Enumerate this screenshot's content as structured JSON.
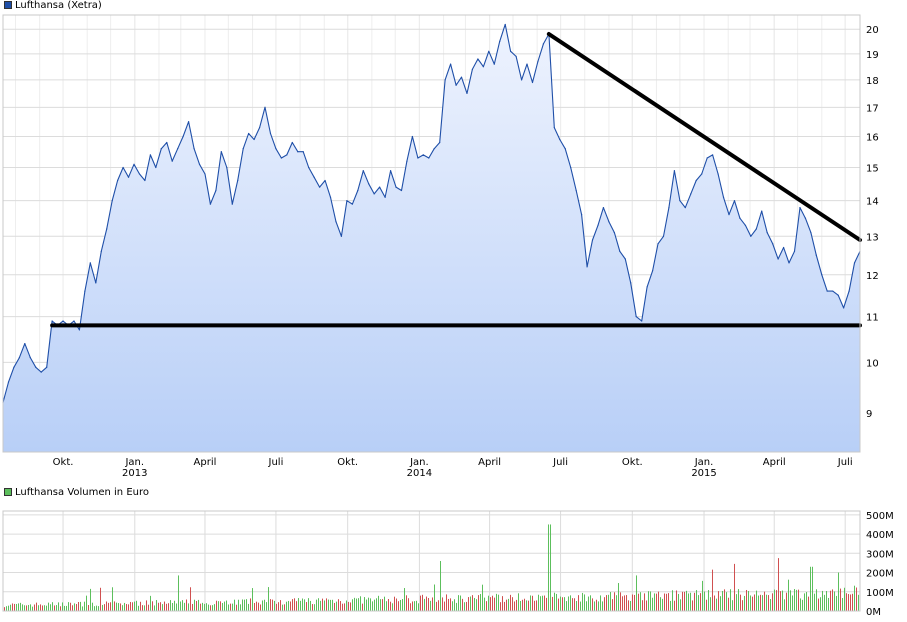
{
  "legends": {
    "price": {
      "label": "Lufthansa (Xetra)",
      "color": "#1f4fa8"
    },
    "volume": {
      "label": "Lufthansa Volumen in Euro",
      "color": "#5cbf5c"
    }
  },
  "chart_data": [
    {
      "type": "area",
      "series": [
        {
          "name": "Lufthansa (Xetra)"
        }
      ],
      "x_ticks": [
        {
          "date": "2012-10-01",
          "label": "Okt.",
          "year": ""
        },
        {
          "date": "2013-01-01",
          "label": "Jan.",
          "year": "2013"
        },
        {
          "date": "2013-04-01",
          "label": "April",
          "year": ""
        },
        {
          "date": "2013-07-01",
          "label": "Juli",
          "year": ""
        },
        {
          "date": "2013-10-01",
          "label": "Okt.",
          "year": ""
        },
        {
          "date": "2014-01-01",
          "label": "Jan.",
          "year": "2014"
        },
        {
          "date": "2014-04-01",
          "label": "April",
          "year": ""
        },
        {
          "date": "2014-07-01",
          "label": "Juli",
          "year": ""
        },
        {
          "date": "2014-10-01",
          "label": "Okt.",
          "year": ""
        },
        {
          "date": "2015-01-01",
          "label": "Jan.",
          "year": "2015"
        },
        {
          "date": "2015-04-01",
          "label": "April",
          "year": ""
        },
        {
          "date": "2015-07-01",
          "label": "Juli",
          "year": ""
        }
      ],
      "y_ticks": [
        9,
        10,
        11,
        12,
        13,
        14,
        15,
        16,
        17,
        18,
        19,
        20
      ],
      "ylim": [
        8.3,
        20.6
      ],
      "y_scale": "log",
      "xlim": [
        "2012-07-16",
        "2015-07-20"
      ],
      "points": [
        [
          "2012-07-16",
          9.2
        ],
        [
          "2012-07-23",
          9.6
        ],
        [
          "2012-07-30",
          9.9
        ],
        [
          "2012-08-06",
          10.1
        ],
        [
          "2012-08-13",
          10.4
        ],
        [
          "2012-08-20",
          10.1
        ],
        [
          "2012-08-27",
          9.9
        ],
        [
          "2012-09-03",
          9.8
        ],
        [
          "2012-09-10",
          9.9
        ],
        [
          "2012-09-17",
          10.9
        ],
        [
          "2012-09-24",
          10.8
        ],
        [
          "2012-10-01",
          10.9
        ],
        [
          "2012-10-08",
          10.8
        ],
        [
          "2012-10-15",
          10.9
        ],
        [
          "2012-10-22",
          10.7
        ],
        [
          "2012-10-29",
          11.6
        ],
        [
          "2012-11-05",
          12.3
        ],
        [
          "2012-11-12",
          11.8
        ],
        [
          "2012-11-19",
          12.6
        ],
        [
          "2012-11-26",
          13.2
        ],
        [
          "2012-12-03",
          14.0
        ],
        [
          "2012-12-10",
          14.6
        ],
        [
          "2012-12-17",
          15.0
        ],
        [
          "2012-12-24",
          14.7
        ],
        [
          "2012-12-31",
          15.1
        ],
        [
          "2013-01-07",
          14.8
        ],
        [
          "2013-01-14",
          14.6
        ],
        [
          "2013-01-21",
          15.4
        ],
        [
          "2013-01-28",
          15.0
        ],
        [
          "2013-02-04",
          15.6
        ],
        [
          "2013-02-11",
          15.8
        ],
        [
          "2013-02-18",
          15.2
        ],
        [
          "2013-02-25",
          15.6
        ],
        [
          "2013-03-04",
          16.0
        ],
        [
          "2013-03-11",
          16.5
        ],
        [
          "2013-03-18",
          15.6
        ],
        [
          "2013-03-25",
          15.1
        ],
        [
          "2013-04-01",
          14.8
        ],
        [
          "2013-04-08",
          13.9
        ],
        [
          "2013-04-15",
          14.3
        ],
        [
          "2013-04-22",
          15.5
        ],
        [
          "2013-04-29",
          15.0
        ],
        [
          "2013-05-06",
          13.9
        ],
        [
          "2013-05-13",
          14.6
        ],
        [
          "2013-05-20",
          15.6
        ],
        [
          "2013-05-27",
          16.1
        ],
        [
          "2013-06-03",
          15.9
        ],
        [
          "2013-06-10",
          16.3
        ],
        [
          "2013-06-17",
          17.0
        ],
        [
          "2013-06-24",
          16.1
        ],
        [
          "2013-07-01",
          15.6
        ],
        [
          "2013-07-08",
          15.3
        ],
        [
          "2013-07-15",
          15.4
        ],
        [
          "2013-07-22",
          15.8
        ],
        [
          "2013-07-29",
          15.5
        ],
        [
          "2013-08-05",
          15.5
        ],
        [
          "2013-08-12",
          15.0
        ],
        [
          "2013-08-19",
          14.7
        ],
        [
          "2013-08-26",
          14.4
        ],
        [
          "2013-09-02",
          14.6
        ],
        [
          "2013-09-09",
          14.1
        ],
        [
          "2013-09-16",
          13.4
        ],
        [
          "2013-09-23",
          13.0
        ],
        [
          "2013-09-30",
          14.0
        ],
        [
          "2013-10-07",
          13.9
        ],
        [
          "2013-10-14",
          14.3
        ],
        [
          "2013-10-21",
          14.9
        ],
        [
          "2013-10-28",
          14.5
        ],
        [
          "2013-11-04",
          14.2
        ],
        [
          "2013-11-11",
          14.4
        ],
        [
          "2013-11-18",
          14.1
        ],
        [
          "2013-11-25",
          14.9
        ],
        [
          "2013-12-02",
          14.4
        ],
        [
          "2013-12-09",
          14.3
        ],
        [
          "2013-12-16",
          15.2
        ],
        [
          "2013-12-23",
          16.0
        ],
        [
          "2013-12-30",
          15.3
        ],
        [
          "2014-01-06",
          15.4
        ],
        [
          "2014-01-13",
          15.3
        ],
        [
          "2014-01-20",
          15.6
        ],
        [
          "2014-01-27",
          15.8
        ],
        [
          "2014-02-03",
          18.0
        ],
        [
          "2014-02-10",
          18.6
        ],
        [
          "2014-02-17",
          17.8
        ],
        [
          "2014-02-24",
          18.1
        ],
        [
          "2014-03-03",
          17.5
        ],
        [
          "2014-03-10",
          18.4
        ],
        [
          "2014-03-17",
          18.8
        ],
        [
          "2014-03-24",
          18.5
        ],
        [
          "2014-03-31",
          19.1
        ],
        [
          "2014-04-07",
          18.6
        ],
        [
          "2014-04-14",
          19.5
        ],
        [
          "2014-04-21",
          20.2
        ],
        [
          "2014-04-28",
          19.1
        ],
        [
          "2014-05-05",
          18.9
        ],
        [
          "2014-05-12",
          18.0
        ],
        [
          "2014-05-19",
          18.6
        ],
        [
          "2014-05-26",
          17.9
        ],
        [
          "2014-06-02",
          18.7
        ],
        [
          "2014-06-09",
          19.4
        ],
        [
          "2014-06-16",
          19.8
        ],
        [
          "2014-06-23",
          16.3
        ],
        [
          "2014-06-30",
          15.9
        ],
        [
          "2014-07-07",
          15.6
        ],
        [
          "2014-07-14",
          15.0
        ],
        [
          "2014-07-21",
          14.3
        ],
        [
          "2014-07-28",
          13.6
        ],
        [
          "2014-08-04",
          12.2
        ],
        [
          "2014-08-11",
          12.9
        ],
        [
          "2014-08-18",
          13.3
        ],
        [
          "2014-08-25",
          13.8
        ],
        [
          "2014-09-01",
          13.4
        ],
        [
          "2014-09-08",
          13.1
        ],
        [
          "2014-09-15",
          12.6
        ],
        [
          "2014-09-22",
          12.4
        ],
        [
          "2014-09-29",
          11.8
        ],
        [
          "2014-10-06",
          11.0
        ],
        [
          "2014-10-13",
          10.9
        ],
        [
          "2014-10-20",
          11.7
        ],
        [
          "2014-10-27",
          12.1
        ],
        [
          "2014-11-03",
          12.8
        ],
        [
          "2014-11-10",
          13.0
        ],
        [
          "2014-11-17",
          13.8
        ],
        [
          "2014-11-24",
          14.9
        ],
        [
          "2014-12-01",
          14.0
        ],
        [
          "2014-12-08",
          13.8
        ],
        [
          "2014-12-15",
          14.2
        ],
        [
          "2014-12-22",
          14.6
        ],
        [
          "2014-12-29",
          14.8
        ],
        [
          "2015-01-05",
          15.3
        ],
        [
          "2015-01-12",
          15.4
        ],
        [
          "2015-01-19",
          14.8
        ],
        [
          "2015-01-26",
          14.1
        ],
        [
          "2015-02-02",
          13.6
        ],
        [
          "2015-02-09",
          14.0
        ],
        [
          "2015-02-16",
          13.5
        ],
        [
          "2015-02-23",
          13.3
        ],
        [
          "2015-03-02",
          13.0
        ],
        [
          "2015-03-09",
          13.2
        ],
        [
          "2015-03-16",
          13.7
        ],
        [
          "2015-03-23",
          13.1
        ],
        [
          "2015-03-30",
          12.8
        ],
        [
          "2015-04-06",
          12.4
        ],
        [
          "2015-04-13",
          12.7
        ],
        [
          "2015-04-20",
          12.3
        ],
        [
          "2015-04-27",
          12.6
        ],
        [
          "2015-05-04",
          13.8
        ],
        [
          "2015-05-11",
          13.5
        ],
        [
          "2015-05-18",
          13.1
        ],
        [
          "2015-05-25",
          12.5
        ],
        [
          "2015-06-01",
          12.0
        ],
        [
          "2015-06-08",
          11.6
        ],
        [
          "2015-06-15",
          11.6
        ],
        [
          "2015-06-22",
          11.5
        ],
        [
          "2015-06-29",
          11.2
        ],
        [
          "2015-07-06",
          11.6
        ],
        [
          "2015-07-13",
          12.3
        ],
        [
          "2015-07-20",
          12.6
        ]
      ],
      "annotations": [
        {
          "type": "trendline",
          "from": [
            "2014-06-16",
            19.8
          ],
          "to": [
            "2015-07-20",
            12.9
          ],
          "color": "#000000"
        },
        {
          "type": "support",
          "from": [
            "2012-09-17",
            10.8
          ],
          "to": [
            "2015-07-20",
            10.8
          ],
          "color": "#000000"
        }
      ],
      "fill_top": "#eef3fe",
      "fill_bottom": "#b8cff7",
      "line_color": "#1f4fa8",
      "grid": true
    },
    {
      "type": "bar",
      "series": [
        {
          "name": "Lufthansa Volumen in Euro"
        }
      ],
      "y_ticks": [
        0,
        100,
        200,
        300,
        400,
        500
      ],
      "y_tick_labels": [
        "0M",
        "100M",
        "200M",
        "300M",
        "400M",
        "500M"
      ],
      "ylim": [
        0,
        520
      ],
      "up_color": "#5cbf5c",
      "down_color": "#d05050",
      "grid": true
    }
  ]
}
